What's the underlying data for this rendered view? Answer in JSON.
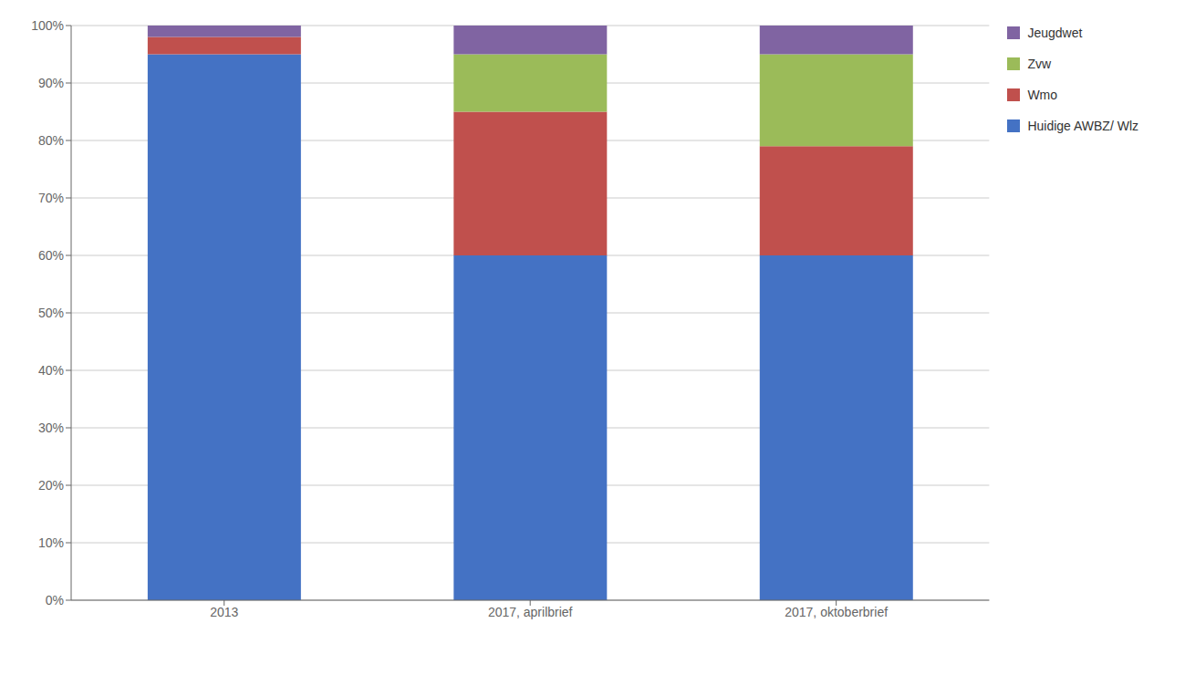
{
  "chart_data": {
    "type": "bar",
    "stacked": true,
    "categories": [
      "2013",
      "2017, aprilbrief",
      "2017, oktoberbrief"
    ],
    "series": [
      {
        "name": "Huidige AWBZ/ Wlz",
        "color": "#4472C4",
        "values": [
          95,
          60,
          60
        ]
      },
      {
        "name": "Wmo",
        "color": "#C0504D",
        "values": [
          3,
          25,
          19
        ]
      },
      {
        "name": "Zvw",
        "color": "#9BBB59",
        "values": [
          0,
          10,
          16
        ]
      },
      {
        "name": "Jeugdwet",
        "color": "#8064A2",
        "values": [
          2,
          5,
          5
        ]
      }
    ],
    "ylim": [
      0,
      100
    ],
    "yticks": [
      {
        "value": 0,
        "label": "0%"
      },
      {
        "value": 10,
        "label": "10%"
      },
      {
        "value": 20,
        "label": "20%"
      },
      {
        "value": 30,
        "label": "30%"
      },
      {
        "value": 40,
        "label": "40%"
      },
      {
        "value": 50,
        "label": "50%"
      },
      {
        "value": 60,
        "label": "60%"
      },
      {
        "value": 70,
        "label": "70%"
      },
      {
        "value": 80,
        "label": "80%"
      },
      {
        "value": 90,
        "label": "90%"
      },
      {
        "value": 100,
        "label": "100%"
      }
    ],
    "grid": true,
    "legend": "upper right"
  }
}
